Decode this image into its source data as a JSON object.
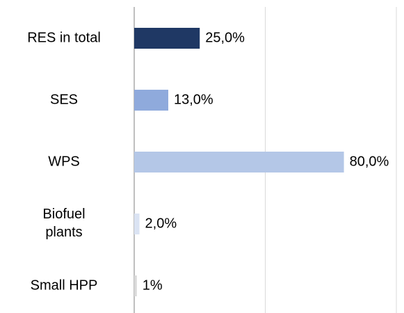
{
  "chart_data": {
    "type": "bar",
    "orientation": "horizontal",
    "categories": [
      "RES in total",
      "SES",
      "WPS",
      "Biofuel plants",
      "Small HPP"
    ],
    "values": [
      25,
      13,
      80,
      2,
      1
    ],
    "value_labels": [
      "25,0%",
      "13,0%",
      "80,0%",
      "2,0%",
      "1%"
    ],
    "colors": [
      "#1f3864",
      "#8faadc",
      "#b4c7e7",
      "#dae3f3",
      "#d9d9d9"
    ],
    "xlim": [
      0,
      100
    ],
    "xticks": [
      0,
      50,
      100
    ],
    "grid": true
  }
}
